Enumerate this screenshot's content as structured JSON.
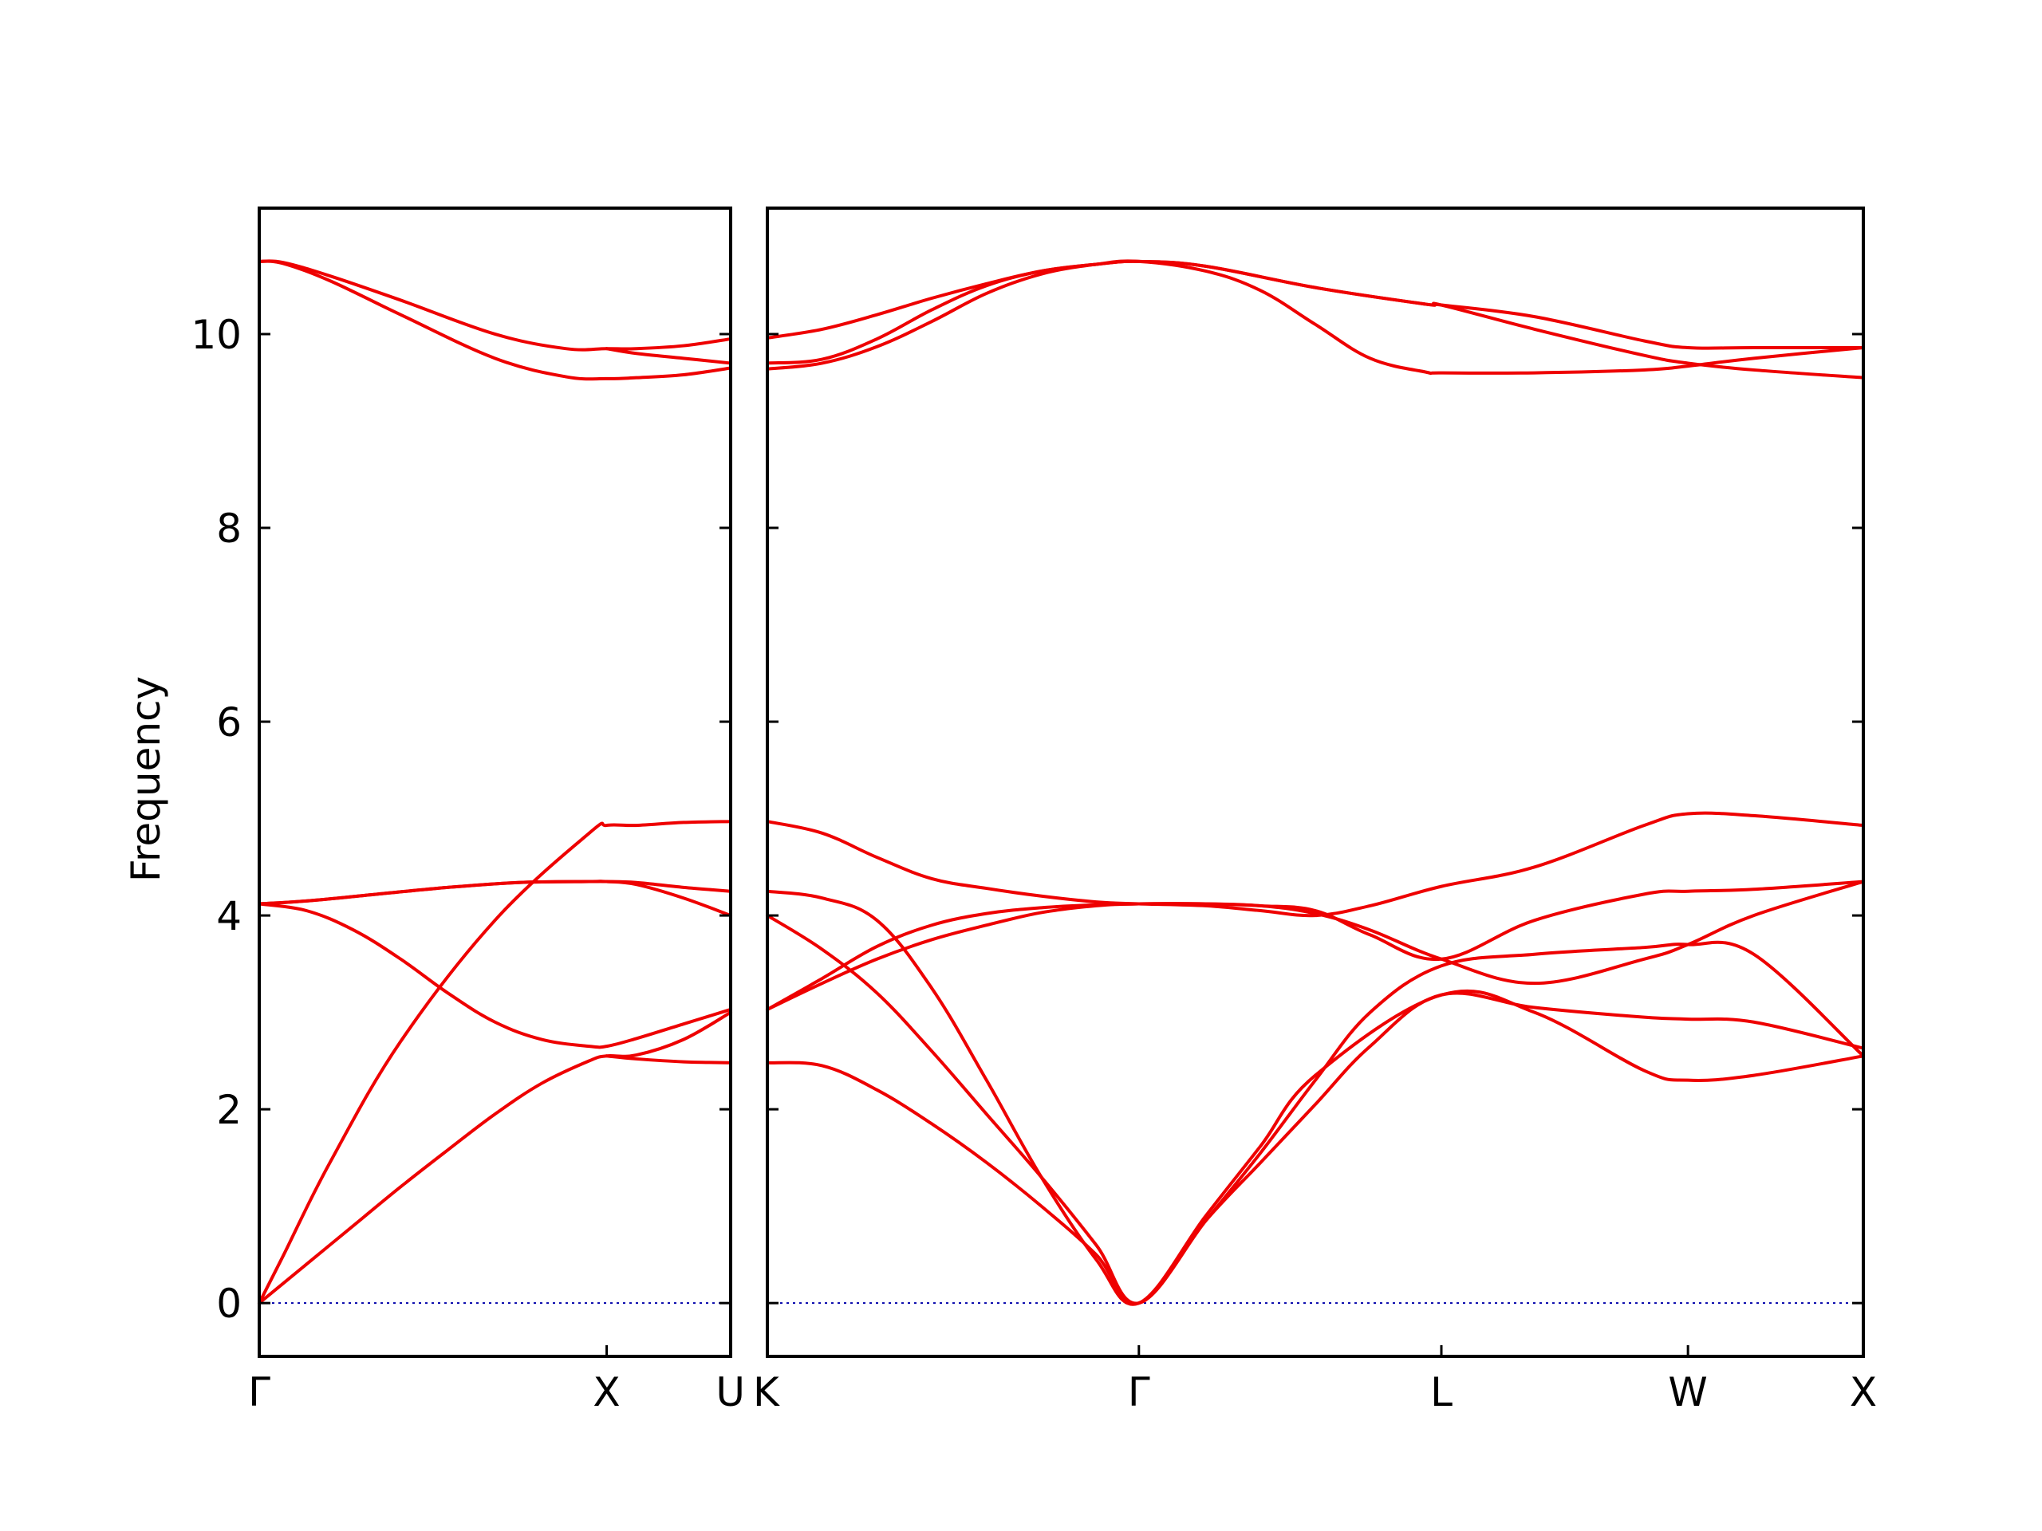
{
  "chart_data": {
    "type": "line",
    "title": "",
    "xlabel": "",
    "ylabel": "Frequency",
    "ylim": [
      -0.55,
      11.3
    ],
    "yticks": [
      0,
      2,
      4,
      6,
      8,
      10
    ],
    "grid": false,
    "legend": "none",
    "colors": {
      "bands": "#ee0000",
      "zero": "#0000aa",
      "frame": "#000000"
    },
    "panels": [
      {
        "xlim": [
          0,
          1
        ],
        "xticks": [
          {
            "x": 0,
            "label": "Γ"
          },
          {
            "x": 0.737,
            "label": "X"
          },
          {
            "x": 1,
            "label": "U"
          }
        ],
        "series": [
          {
            "x": [
              0,
              0.05,
              0.15,
              0.3,
              0.5,
              0.65,
              0.737,
              0.8,
              0.9,
              1
            ],
            "values": [
              10.75,
              10.74,
              10.6,
              10.35,
              10.0,
              9.85,
              9.85,
              9.85,
              9.88,
              9.95
            ]
          },
          {
            "x": [
              0,
              0.05,
              0.15,
              0.3,
              0.5,
              0.65,
              0.737,
              0.8,
              0.9,
              1
            ],
            "values": [
              10.75,
              10.73,
              10.55,
              10.2,
              9.75,
              9.56,
              9.54,
              9.55,
              9.58,
              9.65
            ]
          },
          {
            "x": [
              0.737,
              0.8,
              0.9,
              1
            ],
            "values": [
              9.85,
              9.8,
              9.75,
              9.7
            ]
          },
          {
            "x": [
              0,
              0.05,
              0.15,
              0.3,
              0.5,
              0.7,
              0.737,
              0.8,
              0.9,
              1
            ],
            "values": [
              0.0,
              0.48,
              1.45,
              2.7,
              3.95,
              4.85,
              4.93,
              4.93,
              4.96,
              4.97
            ]
          },
          {
            "x": [
              0,
              0.1,
              0.25,
              0.4,
              0.55,
              0.7,
              0.737,
              0.8,
              0.9,
              1
            ],
            "values": [
              4.12,
              4.15,
              4.22,
              4.29,
              4.34,
              4.35,
              4.35,
              4.34,
              4.29,
              4.25
            ]
          },
          {
            "x": [
              0,
              0.1,
              0.25,
              0.4,
              0.55,
              0.7,
              0.737,
              0.8,
              0.9,
              1
            ],
            "values": [
              4.12,
              4.15,
              4.22,
              4.29,
              4.34,
              4.35,
              4.35,
              4.32,
              4.18,
              4.0
            ]
          },
          {
            "x": [
              0,
              0.1,
              0.2,
              0.3,
              0.4,
              0.5,
              0.6,
              0.7,
              0.737,
              0.8,
              0.9,
              1
            ],
            "values": [
              4.12,
              4.05,
              3.85,
              3.55,
              3.2,
              2.9,
              2.72,
              2.65,
              2.65,
              2.73,
              2.88,
              3.03
            ]
          },
          {
            "x": [
              0,
              0.1,
              0.2,
              0.3,
              0.4,
              0.5,
              0.6,
              0.7,
              0.737,
              0.8,
              0.9,
              1
            ],
            "values": [
              0.0,
              0.4,
              0.8,
              1.2,
              1.58,
              1.95,
              2.27,
              2.5,
              2.55,
              2.56,
              2.72,
              3.0
            ]
          },
          {
            "x": [
              0.737,
              0.8,
              0.9,
              1
            ],
            "values": [
              2.55,
              2.52,
              2.49,
              2.48
            ]
          }
        ]
      },
      {
        "xlim": [
          0,
          1
        ],
        "xticks": [
          {
            "x": 0,
            "label": "K"
          },
          {
            "x": 0.339,
            "label": "Γ"
          },
          {
            "x": 0.615,
            "label": "L"
          },
          {
            "x": 0.84,
            "label": "W"
          },
          {
            "x": 1,
            "label": "X"
          }
        ],
        "series": [
          {
            "x": [
              0,
              0.05,
              0.1,
              0.15,
              0.2,
              0.25,
              0.3,
              0.339,
              0.4,
              0.5,
              0.6,
              0.615,
              0.7,
              0.8,
              0.84,
              0.9,
              1
            ],
            "values": [
              9.96,
              10.05,
              10.2,
              10.37,
              10.52,
              10.65,
              10.72,
              10.75,
              10.7,
              10.48,
              10.31,
              10.3,
              10.18,
              9.93,
              9.86,
              9.86,
              9.86
            ]
          },
          {
            "x": [
              0,
              0.05,
              0.1,
              0.15,
              0.2,
              0.25,
              0.3,
              0.339,
              0.4,
              0.5,
              0.6,
              0.615,
              0.7,
              0.8,
              0.84,
              0.9,
              1
            ],
            "values": [
              9.7,
              9.74,
              9.95,
              10.25,
              10.5,
              10.65,
              10.72,
              10.75,
              10.7,
              10.48,
              10.31,
              10.3,
              10.05,
              9.78,
              9.7,
              9.63,
              9.55
            ]
          },
          {
            "x": [
              0,
              0.05,
              0.1,
              0.15,
              0.2,
              0.25,
              0.3,
              0.339,
              0.4,
              0.45,
              0.5,
              0.55,
              0.6,
              0.615,
              0.7,
              0.8,
              0.84,
              0.9,
              1
            ],
            "values": [
              9.64,
              9.7,
              9.87,
              10.13,
              10.42,
              10.62,
              10.72,
              10.75,
              10.65,
              10.45,
              10.1,
              9.75,
              9.61,
              9.6,
              9.6,
              9.63,
              9.67,
              9.75,
              9.86
            ]
          },
          {
            "x": [
              0,
              0.05,
              0.1,
              0.15,
              0.2,
              0.25,
              0.3,
              0.339,
              0.4,
              0.45,
              0.5,
              0.55,
              0.615,
              0.7,
              0.8,
              0.84,
              0.9,
              1
            ],
            "values": [
              4.97,
              4.85,
              4.6,
              4.38,
              4.28,
              4.2,
              4.14,
              4.12,
              4.1,
              4.05,
              4.0,
              4.1,
              4.3,
              4.5,
              4.93,
              5.05,
              5.03,
              4.93
            ]
          },
          {
            "x": [
              0,
              0.05,
              0.1,
              0.15,
              0.2,
              0.25,
              0.3,
              0.339,
              0.4,
              0.45,
              0.5,
              0.615,
              0.7,
              0.8,
              0.84,
              0.9,
              1
            ],
            "values": [
              4.25,
              4.18,
              3.95,
              3.25,
              2.3,
              1.3,
              0.45,
              0.0,
              0.9,
              1.62,
              2.35,
              3.18,
              3.0,
              2.4,
              2.3,
              2.35,
              2.55
            ]
          },
          {
            "x": [
              0,
              0.05,
              0.1,
              0.15,
              0.2,
              0.25,
              0.3,
              0.339,
              0.4,
              0.45,
              0.5,
              0.55,
              0.615,
              0.7,
              0.8,
              0.84,
              0.9,
              1
            ],
            "values": [
              4.0,
              3.65,
              3.2,
              2.6,
              1.95,
              1.3,
              0.6,
              0.0,
              0.85,
              1.55,
              2.3,
              3.0,
              3.48,
              3.6,
              3.67,
              3.7,
              3.6,
              2.55
            ]
          },
          {
            "x": [
              0,
              0.05,
              0.1,
              0.15,
              0.2,
              0.25,
              0.3,
              0.339,
              0.4,
              0.45,
              0.5,
              0.55,
              0.615,
              0.7,
              0.8,
              0.84,
              0.9,
              1
            ],
            "values": [
              2.48,
              2.45,
              2.2,
              1.85,
              1.45,
              1.0,
              0.5,
              0.0,
              0.85,
              1.45,
              2.05,
              2.65,
              3.18,
              3.05,
              2.95,
              2.93,
              2.9,
              2.63
            ]
          },
          {
            "x": [
              0,
              0.05,
              0.1,
              0.15,
              0.2,
              0.25,
              0.3,
              0.339,
              0.4,
              0.45,
              0.5,
              0.55,
              0.615,
              0.7,
              0.8,
              0.84,
              0.9,
              1
            ],
            "values": [
              3.03,
              3.35,
              3.68,
              3.9,
              4.02,
              4.08,
              4.11,
              4.12,
              4.12,
              4.1,
              4.02,
              3.85,
              3.55,
              3.3,
              3.55,
              3.7,
              4.0,
              4.35
            ]
          },
          {
            "x": [
              0,
              0.05,
              0.1,
              0.15,
              0.2,
              0.25,
              0.3,
              0.339,
              0.4,
              0.45,
              0.5,
              0.55,
              0.615,
              0.7,
              0.8,
              0.84,
              0.9,
              1
            ],
            "values": [
              3.03,
              3.3,
              3.55,
              3.75,
              3.9,
              4.03,
              4.1,
              4.12,
              4.12,
              4.1,
              4.05,
              3.8,
              3.55,
              3.95,
              4.22,
              4.25,
              4.27,
              4.35
            ]
          }
        ]
      }
    ]
  }
}
